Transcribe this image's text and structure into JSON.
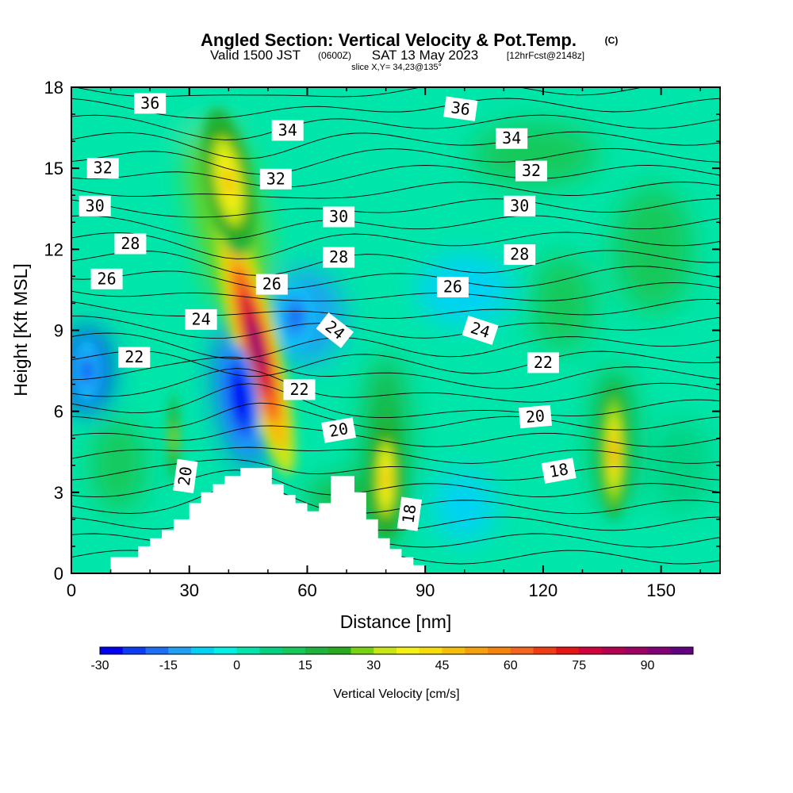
{
  "chart_data": {
    "type": "heatmap",
    "title": "Angled Section: Vertical Velocity & Pot.Temp.",
    "title_units": "(C)",
    "subtitle_main_1": "Valid 1500 JST",
    "subtitle_utc": "(0600Z)",
    "subtitle_main_2": "SAT 13 May 2023",
    "subtitle_fcst": "[12hrFcst@2148z]",
    "slice_info": "slice X,Y= 34,23@135°",
    "xlabel": "Distance [nm]",
    "ylabel": "Height [Kft MSL]",
    "xlim": [
      0,
      165
    ],
    "ylim": [
      0,
      18
    ],
    "x_ticks": [
      "0",
      "30",
      "60",
      "90",
      "120",
      "150"
    ],
    "y_ticks": [
      "0",
      "3",
      "6",
      "9",
      "12",
      "15",
      "18"
    ],
    "colorbar": {
      "label": "Vertical Velocity [cm/s]",
      "tick_labels": [
        "-30",
        "-15",
        "0",
        "15",
        "30",
        "45",
        "60",
        "75",
        "90"
      ],
      "range": [
        -30,
        100
      ],
      "step": 5,
      "colors": [
        "#0000f5",
        "#0a3cf5",
        "#1e6ef5",
        "#1ea0f5",
        "#00d2f5",
        "#00f0e6",
        "#00e6aa",
        "#00d282",
        "#14c85a",
        "#1eb43c",
        "#28aa1e",
        "#78d214",
        "#c8e614",
        "#f5f014",
        "#f5dc0a",
        "#f5be0a",
        "#f5a00a",
        "#f5820a",
        "#f5641e",
        "#f03c14",
        "#e61414",
        "#d2003c",
        "#b40050",
        "#a00064",
        "#820078",
        "#640082"
      ]
    },
    "vertical_velocity_cores_cm_per_s": [
      {
        "x_nm": 47,
        "z_kft": 8.5,
        "peak": 90
      },
      {
        "x_nm": 40,
        "z_kft": 14.5,
        "peak": 45
      },
      {
        "x_nm": 80,
        "z_kft": 3.5,
        "peak": 45
      },
      {
        "x_nm": 138,
        "z_kft": 4.5,
        "peak": 50
      },
      {
        "x_nm": 26,
        "z_kft": 5,
        "peak": 30
      },
      {
        "x_nm": 43,
        "z_kft": 6.5,
        "peak": -30
      },
      {
        "x_nm": 4,
        "z_kft": 7.5,
        "peak": -22
      },
      {
        "x_nm": 57,
        "z_kft": 9.5,
        "peak": -20
      }
    ],
    "potential_temperature_labels_C": [
      {
        "text": "36",
        "x": 20,
        "z": 17.4,
        "rot": 0
      },
      {
        "text": "36",
        "x": 99,
        "z": 17.2,
        "rot": 8
      },
      {
        "text": "34",
        "x": 55,
        "z": 16.4,
        "rot": 0
      },
      {
        "text": "34",
        "x": 112,
        "z": 16.1,
        "rot": 0
      },
      {
        "text": "32",
        "x": 8,
        "z": 15.0,
        "rot": 0
      },
      {
        "text": "32",
        "x": 52,
        "z": 14.6,
        "rot": 0
      },
      {
        "text": "32",
        "x": 117,
        "z": 14.9,
        "rot": 0
      },
      {
        "text": "30",
        "x": 6,
        "z": 13.6,
        "rot": 0
      },
      {
        "text": "30",
        "x": 68,
        "z": 13.2,
        "rot": 0
      },
      {
        "text": "30",
        "x": 114,
        "z": 13.6,
        "rot": 0
      },
      {
        "text": "28",
        "x": 15,
        "z": 12.2,
        "rot": 0
      },
      {
        "text": "28",
        "x": 68,
        "z": 11.7,
        "rot": 0
      },
      {
        "text": "28",
        "x": 114,
        "z": 11.8,
        "rot": 0
      },
      {
        "text": "26",
        "x": 9,
        "z": 10.9,
        "rot": 0
      },
      {
        "text": "26",
        "x": 51,
        "z": 10.7,
        "rot": 0
      },
      {
        "text": "26",
        "x": 97,
        "z": 10.6,
        "rot": 0
      },
      {
        "text": "24",
        "x": 33,
        "z": 9.4,
        "rot": 0
      },
      {
        "text": "24",
        "x": 67,
        "z": 9.0,
        "rot": 38
      },
      {
        "text": "24",
        "x": 104,
        "z": 9.0,
        "rot": 18
      },
      {
        "text": "22",
        "x": 16,
        "z": 8.0,
        "rot": 0
      },
      {
        "text": "22",
        "x": 58,
        "z": 6.8,
        "rot": 0
      },
      {
        "text": "22",
        "x": 120,
        "z": 7.8,
        "rot": 0
      },
      {
        "text": "20",
        "x": 68,
        "z": 5.3,
        "rot": -10
      },
      {
        "text": "20",
        "x": 118,
        "z": 5.8,
        "rot": -5
      },
      {
        "text": "20",
        "x": 29,
        "z": 3.6,
        "rot": -82
      },
      {
        "text": "18",
        "x": 124,
        "z": 3.8,
        "rot": -10
      },
      {
        "text": "18",
        "x": 86,
        "z": 2.2,
        "rot": -82
      }
    ],
    "terrain": {
      "x_nm": [
        0,
        10,
        10,
        17,
        17,
        20,
        20,
        23,
        23,
        26,
        26,
        30,
        30,
        33,
        33,
        36,
        36,
        39,
        39,
        43,
        43,
        51,
        51,
        54,
        54,
        57,
        57,
        60,
        60,
        63,
        63,
        66,
        66,
        72,
        72,
        75,
        75,
        78,
        78,
        81,
        81,
        84,
        84,
        87,
        87,
        90,
        90,
        165
      ],
      "z_kft": [
        0,
        0,
        0.6,
        0.6,
        1.0,
        1.0,
        1.3,
        1.3,
        1.6,
        1.6,
        2.0,
        2.0,
        2.6,
        2.6,
        3.0,
        3.0,
        3.3,
        3.3,
        3.6,
        3.6,
        3.9,
        3.9,
        3.3,
        3.3,
        2.9,
        2.9,
        2.6,
        2.6,
        2.3,
        2.3,
        2.6,
        2.6,
        3.6,
        3.6,
        3.0,
        3.0,
        2.0,
        2.0,
        1.3,
        1.3,
        0.9,
        0.9,
        0.6,
        0.6,
        0.3,
        0.3,
        0,
        0
      ]
    }
  }
}
